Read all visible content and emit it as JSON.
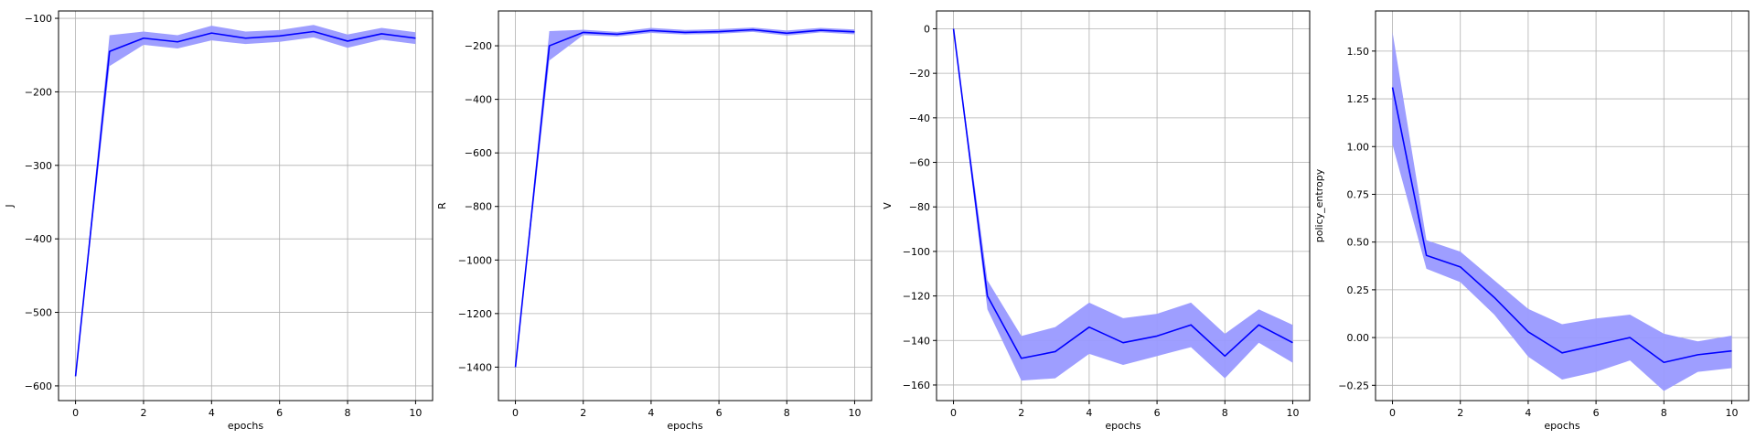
{
  "figure": {
    "background": "#ffffff"
  },
  "style": {
    "line_color": "#0000ff",
    "band_color": "#9999ff",
    "grid_color": "#b0b0b0"
  },
  "chart_data": [
    {
      "type": "line",
      "xlabel": "epochs",
      "ylabel": "J",
      "xlim": [
        -0.5,
        10.5
      ],
      "ylim": [
        -620,
        -90
      ],
      "xticks": [
        0,
        2,
        4,
        6,
        8,
        10
      ],
      "xtick_labels": [
        "0",
        "2",
        "4",
        "6",
        "8",
        "10"
      ],
      "yticks": [
        -600,
        -500,
        -400,
        -300,
        -200,
        -100
      ],
      "ytick_labels": [
        "−600",
        "−500",
        "−400",
        "−300",
        "−200",
        "−100"
      ],
      "grid": true,
      "x": [
        0,
        1,
        2,
        3,
        4,
        5,
        6,
        7,
        8,
        9,
        10
      ],
      "series": [
        {
          "values": [
            -587,
            -145,
            -127,
            -132,
            -120,
            -127,
            -124,
            -118,
            -131,
            -121,
            -127
          ],
          "lower": [
            -587,
            -165,
            -136,
            -141,
            -130,
            -135,
            -132,
            -126,
            -140,
            -129,
            -135
          ],
          "upper": [
            -587,
            -123,
            -118,
            -123,
            -110,
            -118,
            -116,
            -109,
            -122,
            -113,
            -119
          ]
        }
      ]
    },
    {
      "type": "line",
      "xlabel": "epochs",
      "ylabel": "R",
      "xlim": [
        -0.5,
        10.5
      ],
      "ylim": [
        -1525,
        -70
      ],
      "xticks": [
        0,
        2,
        4,
        6,
        8,
        10
      ],
      "xtick_labels": [
        "0",
        "2",
        "4",
        "6",
        "8",
        "10"
      ],
      "yticks": [
        -1400,
        -1200,
        -1000,
        -800,
        -600,
        -400,
        -200
      ],
      "ytick_labels": [
        "−1400",
        "−1200",
        "−1000",
        "−800",
        "−600",
        "−400",
        "−200"
      ],
      "grid": true,
      "x": [
        0,
        1,
        2,
        3,
        4,
        5,
        6,
        7,
        8,
        9,
        10
      ],
      "series": [
        {
          "values": [
            -1400,
            -200,
            -150,
            -157,
            -143,
            -150,
            -147,
            -140,
            -153,
            -142,
            -148
          ],
          "lower": [
            -1400,
            -255,
            -160,
            -165,
            -152,
            -158,
            -155,
            -148,
            -162,
            -150,
            -157
          ],
          "upper": [
            -1400,
            -145,
            -140,
            -148,
            -133,
            -141,
            -138,
            -132,
            -143,
            -133,
            -139
          ]
        }
      ]
    },
    {
      "type": "line",
      "xlabel": "epochs",
      "ylabel": "V",
      "xlim": [
        -0.5,
        10.5
      ],
      "ylim": [
        -167,
        8
      ],
      "xticks": [
        0,
        2,
        4,
        6,
        8,
        10
      ],
      "xtick_labels": [
        "0",
        "2",
        "4",
        "6",
        "8",
        "10"
      ],
      "yticks": [
        -160,
        -140,
        -120,
        -100,
        -80,
        -60,
        -40,
        -20,
        0
      ],
      "ytick_labels": [
        "−160",
        "−140",
        "−120",
        "−100",
        "−80",
        "−60",
        "−40",
        "−20",
        "0"
      ],
      "grid": true,
      "x": [
        0,
        1,
        2,
        3,
        4,
        5,
        6,
        7,
        8,
        9,
        10
      ],
      "series": [
        {
          "values": [
            0,
            -120,
            -148,
            -145,
            -134,
            -141,
            -138,
            -133,
            -147,
            -133,
            -141
          ],
          "lower": [
            0,
            -126,
            -158,
            -157,
            -146,
            -151,
            -147,
            -143,
            -157,
            -141,
            -150
          ],
          "upper": [
            0,
            -113,
            -138,
            -134,
            -123,
            -130,
            -128,
            -123,
            -137,
            -126,
            -133
          ]
        }
      ]
    },
    {
      "type": "line",
      "xlabel": "epochs",
      "ylabel": "policy_entropy",
      "xlim": [
        -0.5,
        10.5
      ],
      "ylim": [
        -0.33,
        1.71
      ],
      "xticks": [
        0,
        2,
        4,
        6,
        8,
        10
      ],
      "xtick_labels": [
        "0",
        "2",
        "4",
        "6",
        "8",
        "10"
      ],
      "yticks": [
        -0.25,
        0.0,
        0.25,
        0.5,
        0.75,
        1.0,
        1.25,
        1.5
      ],
      "ytick_labels": [
        "−0.25",
        "0.00",
        "0.25",
        "0.50",
        "0.75",
        "1.00",
        "1.25",
        "1.50"
      ],
      "grid": true,
      "x": [
        0,
        1,
        2,
        3,
        4,
        5,
        6,
        7,
        8,
        9,
        10
      ],
      "series": [
        {
          "values": [
            1.31,
            0.43,
            0.37,
            0.21,
            0.03,
            -0.08,
            -0.04,
            0.0,
            -0.13,
            -0.09,
            -0.07
          ],
          "lower": [
            1.01,
            0.36,
            0.29,
            0.12,
            -0.1,
            -0.22,
            -0.18,
            -0.12,
            -0.28,
            -0.18,
            -0.16
          ],
          "upper": [
            1.6,
            0.51,
            0.45,
            0.3,
            0.15,
            0.07,
            0.1,
            0.12,
            0.02,
            -0.02,
            0.01
          ]
        }
      ]
    }
  ]
}
